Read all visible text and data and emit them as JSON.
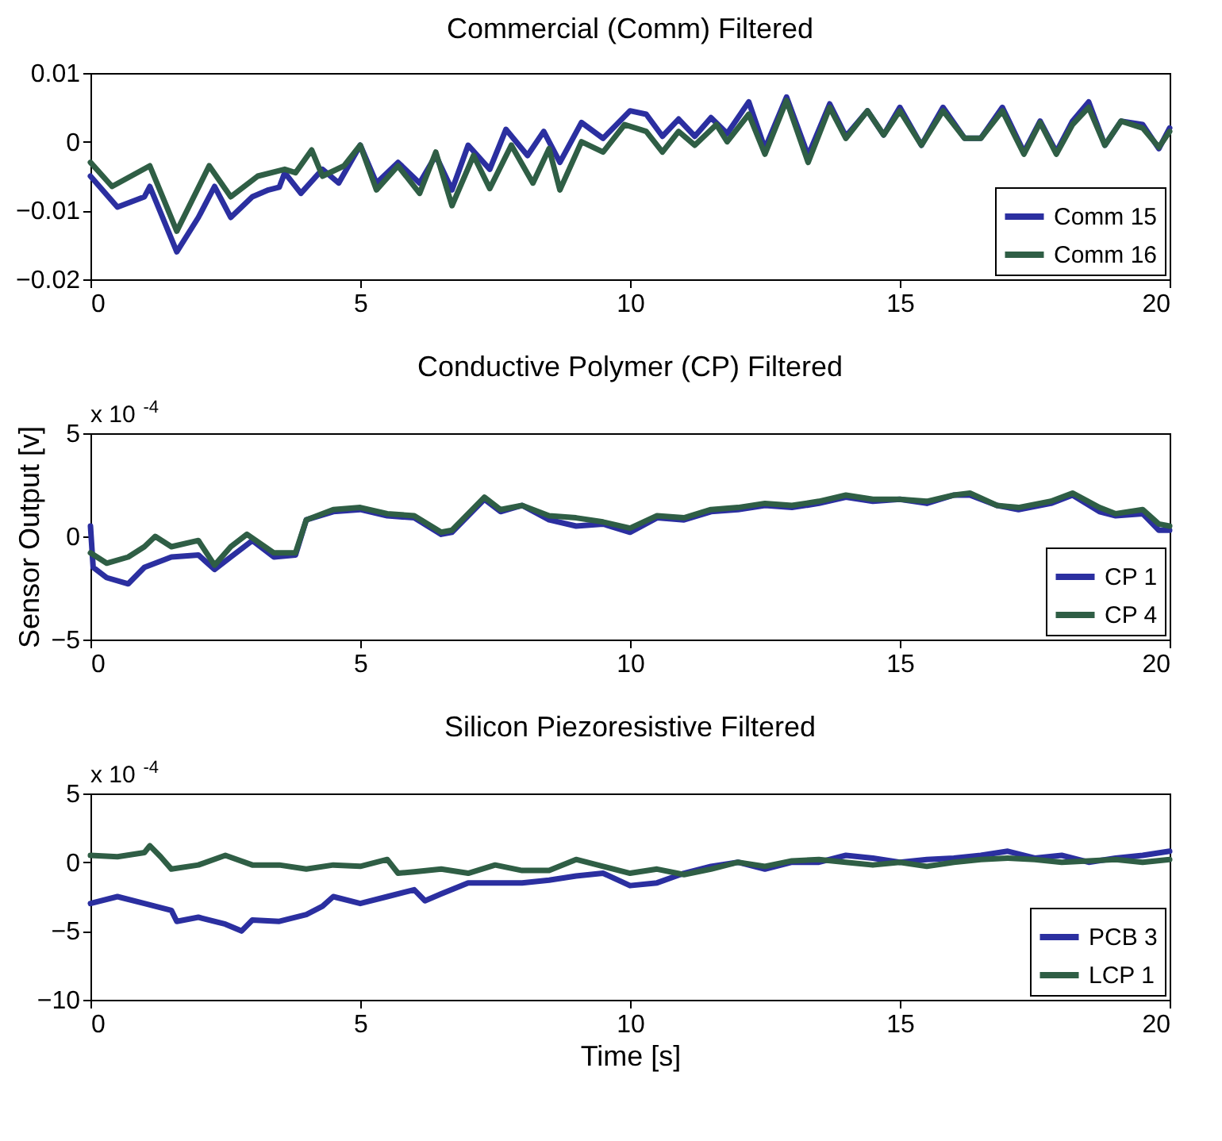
{
  "chart_data": [
    {
      "type": "line",
      "title": "Commercial (Comm) Filtered",
      "xlim": [
        0,
        20
      ],
      "xticks": [
        0,
        5,
        10,
        15,
        20
      ],
      "ylim": [
        -0.02,
        0.01
      ],
      "yticks": [
        -0.02,
        -0.01,
        0,
        0.01
      ],
      "grid": false,
      "legend": "bottom right",
      "line_style": "solid",
      "marker": "none",
      "series": [
        {
          "name": "Comm 15",
          "color": "#2b2fa0",
          "x": [
            0,
            0.5,
            1.0,
            1.1,
            1.6,
            2.0,
            2.3,
            2.6,
            3.0,
            3.3,
            3.5,
            3.6,
            3.9,
            4.3,
            4.6,
            5.0,
            5.3,
            5.7,
            6.1,
            6.4,
            6.7,
            7.0,
            7.4,
            7.7,
            8.1,
            8.4,
            8.7,
            9.1,
            9.5,
            10.0,
            10.3,
            10.6,
            10.9,
            11.2,
            11.5,
            11.8,
            12.2,
            12.5,
            12.9,
            13.3,
            13.7,
            14.0,
            14.4,
            14.7,
            15.0,
            15.4,
            15.8,
            16.2,
            16.5,
            16.9,
            17.3,
            17.6,
            17.9,
            18.2,
            18.5,
            18.8,
            19.1,
            19.5,
            19.8,
            20
          ],
          "values": [
            -0.005,
            -0.0095,
            -0.008,
            -0.0065,
            -0.016,
            -0.011,
            -0.0065,
            -0.011,
            -0.008,
            -0.007,
            -0.0066,
            -0.0045,
            -0.0075,
            -0.004,
            -0.006,
            -0.0005,
            -0.006,
            -0.003,
            -0.006,
            -0.002,
            -0.007,
            -0.0005,
            -0.004,
            0.0018,
            -0.002,
            0.0015,
            -0.003,
            0.0028,
            0.0005,
            0.0045,
            0.004,
            0.0008,
            0.0033,
            0.0008,
            0.0035,
            0.0012,
            0.0058,
            -0.001,
            0.0065,
            -0.002,
            0.0055,
            0.0008,
            0.0045,
            0.001,
            0.005,
            -0.0005,
            0.005,
            0.0005,
            0.0005,
            0.005,
            -0.0015,
            0.003,
            -0.0015,
            0.003,
            0.0058,
            -0.0005,
            0.003,
            0.0025,
            -0.001,
            0.002
          ]
        },
        {
          "name": "Comm 16",
          "color": "#2f5e45",
          "x": [
            0,
            0.4,
            1.1,
            1.6,
            2.2,
            2.6,
            3.1,
            3.6,
            3.8,
            4.1,
            4.3,
            4.7,
            5.0,
            5.3,
            5.7,
            6.1,
            6.4,
            6.7,
            7.1,
            7.4,
            7.8,
            8.2,
            8.5,
            8.7,
            9.1,
            9.5,
            9.9,
            10.3,
            10.6,
            10.9,
            11.2,
            11.6,
            11.8,
            12.2,
            12.5,
            12.9,
            13.3,
            13.7,
            14.0,
            14.4,
            14.7,
            15.0,
            15.4,
            15.8,
            16.2,
            16.5,
            16.9,
            17.3,
            17.6,
            17.9,
            18.2,
            18.5,
            18.8,
            19.1,
            19.5,
            19.8,
            20
          ],
          "values": [
            -0.003,
            -0.0065,
            -0.0035,
            -0.013,
            -0.0035,
            -0.008,
            -0.005,
            -0.004,
            -0.0045,
            -0.0012,
            -0.005,
            -0.0035,
            -0.0005,
            -0.007,
            -0.0035,
            -0.0075,
            -0.0015,
            -0.0093,
            -0.002,
            -0.0068,
            -0.0005,
            -0.006,
            -0.001,
            -0.007,
            0.0,
            -0.0015,
            0.0025,
            0.0015,
            -0.0015,
            0.0015,
            -0.0005,
            0.0025,
            0.0,
            0.004,
            -0.0018,
            0.006,
            -0.003,
            0.005,
            0.0005,
            0.0045,
            0.001,
            0.0045,
            -0.0005,
            0.0045,
            0.0005,
            0.0005,
            0.0045,
            -0.0018,
            0.0028,
            -0.0018,
            0.0025,
            0.005,
            -0.0005,
            0.003,
            0.002,
            -0.0008,
            0.0015
          ]
        }
      ]
    },
    {
      "type": "line",
      "title": "Conductive Polymer (CP) Filtered",
      "ylabel": "Sensor Output [v]",
      "annotations": [
        "x 10$^{-4}$"
      ],
      "xlim": [
        0,
        20
      ],
      "xticks": [
        0,
        5,
        10,
        15,
        20
      ],
      "ylim": [
        -5,
        5
      ],
      "yticks": [
        -5,
        0,
        5
      ],
      "grid": false,
      "legend": "bottom right",
      "line_style": "solid",
      "marker": "none",
      "series": [
        {
          "name": "CP 1",
          "color": "#2b2fa0",
          "x": [
            0,
            0.05,
            0.3,
            0.7,
            1.0,
            1.5,
            2.0,
            2.3,
            2.6,
            3.0,
            3.4,
            3.8,
            4.0,
            4.5,
            5.0,
            5.5,
            6.0,
            6.5,
            6.7,
            7.3,
            7.6,
            8.0,
            8.5,
            9.0,
            9.5,
            10.0,
            10.5,
            11.0,
            11.5,
            12,
            12.5,
            13,
            13.5,
            14,
            14.5,
            15,
            15.5,
            16,
            16.3,
            16.8,
            17.2,
            17.8,
            18.2,
            18.7,
            19.0,
            19.5,
            19.8,
            20
          ],
          "values": [
            0.5,
            -1.5,
            -2.0,
            -2.3,
            -1.5,
            -1.0,
            -0.9,
            -1.6,
            -1.0,
            -0.2,
            -1.0,
            -0.9,
            0.8,
            1.2,
            1.3,
            1.0,
            0.9,
            0.1,
            0.2,
            1.8,
            1.2,
            1.5,
            0.8,
            0.5,
            0.6,
            0.2,
            0.9,
            0.8,
            1.2,
            1.3,
            1.5,
            1.4,
            1.6,
            1.9,
            1.7,
            1.8,
            1.6,
            2.0,
            2.0,
            1.5,
            1.3,
            1.6,
            2.0,
            1.2,
            1.0,
            1.1,
            0.3,
            0.3
          ]
        },
        {
          "name": "CP 4",
          "color": "#2f5e45",
          "x": [
            0,
            0.3,
            0.7,
            1.0,
            1.2,
            1.5,
            2.0,
            2.3,
            2.6,
            2.9,
            3.4,
            3.8,
            4.0,
            4.5,
            5.0,
            5.5,
            6.0,
            6.5,
            6.7,
            7.3,
            7.6,
            8.0,
            8.5,
            9.0,
            9.5,
            10.0,
            10.5,
            11.0,
            11.5,
            12,
            12.5,
            13,
            13.5,
            14,
            14.5,
            15,
            15.5,
            16,
            16.3,
            16.8,
            17.2,
            17.8,
            18.2,
            18.7,
            19.0,
            19.5,
            19.8,
            20
          ],
          "values": [
            -0.8,
            -1.3,
            -1.0,
            -0.5,
            0.0,
            -0.5,
            -0.2,
            -1.4,
            -0.5,
            0.1,
            -0.8,
            -0.8,
            0.8,
            1.3,
            1.4,
            1.1,
            1.0,
            0.2,
            0.3,
            1.9,
            1.3,
            1.5,
            1.0,
            0.9,
            0.7,
            0.4,
            1.0,
            0.9,
            1.3,
            1.4,
            1.6,
            1.5,
            1.7,
            2.0,
            1.8,
            1.8,
            1.7,
            2.0,
            2.1,
            1.5,
            1.4,
            1.7,
            2.1,
            1.4,
            1.1,
            1.3,
            0.6,
            0.5
          ]
        }
      ]
    },
    {
      "type": "line",
      "title": "Silicon Piezoresistive Filtered",
      "xlabel": "Time [s]",
      "annotations": [
        "x 10$^{-4}$"
      ],
      "xlim": [
        0,
        20
      ],
      "xticks": [
        0,
        5,
        10,
        15,
        20
      ],
      "ylim": [
        -10,
        5
      ],
      "yticks": [
        -10,
        -5,
        0,
        5
      ],
      "grid": false,
      "legend": "bottom right",
      "line_style": "solid",
      "marker": "none",
      "series": [
        {
          "name": "PCB 3",
          "color": "#2b2fa0",
          "x": [
            0,
            0.5,
            1.0,
            1.5,
            1.6,
            2.0,
            2.5,
            2.8,
            3.0,
            3.5,
            4.0,
            4.3,
            4.5,
            5.0,
            5.5,
            6.0,
            6.2,
            6.5,
            7.0,
            7.5,
            8.0,
            8.5,
            9.0,
            9.5,
            10.0,
            10.5,
            11.0,
            11.5,
            12,
            12.5,
            13,
            13.5,
            14,
            14.5,
            15,
            15.5,
            16,
            16.5,
            17.0,
            17.5,
            18,
            18.5,
            19,
            19.5,
            20
          ],
          "values": [
            -3.0,
            -2.5,
            -3.0,
            -3.5,
            -4.3,
            -4.0,
            -4.5,
            -5.0,
            -4.2,
            -4.3,
            -3.8,
            -3.2,
            -2.5,
            -3.0,
            -2.5,
            -2.0,
            -2.8,
            -2.3,
            -1.5,
            -1.5,
            -1.5,
            -1.3,
            -1.0,
            -0.8,
            -1.7,
            -1.5,
            -0.8,
            -0.3,
            0.0,
            -0.5,
            0.0,
            0.0,
            0.5,
            0.3,
            0.0,
            0.2,
            0.3,
            0.5,
            0.8,
            0.3,
            0.5,
            0.0,
            0.3,
            0.5,
            0.8
          ]
        },
        {
          "name": "LCP 1",
          "color": "#2f5e45",
          "x": [
            0,
            0.5,
            1.0,
            1.1,
            1.3,
            1.5,
            2.0,
            2.5,
            3.0,
            3.5,
            4.0,
            4.5,
            5.0,
            5.5,
            5.7,
            6.0,
            6.5,
            7.0,
            7.5,
            8.0,
            8.5,
            9.0,
            9.5,
            10.0,
            10.5,
            11.0,
            11.5,
            12,
            12.5,
            13,
            13.5,
            14,
            14.5,
            15,
            15.5,
            16,
            16.5,
            17,
            17.5,
            18,
            18.5,
            19,
            19.5,
            20
          ],
          "values": [
            0.5,
            0.4,
            0.7,
            1.2,
            0.4,
            -0.5,
            -0.2,
            0.5,
            -0.2,
            -0.2,
            -0.5,
            -0.2,
            -0.3,
            0.2,
            -0.8,
            -0.7,
            -0.5,
            -0.8,
            -0.2,
            -0.6,
            -0.6,
            0.2,
            -0.3,
            -0.8,
            -0.5,
            -0.9,
            -0.5,
            0.0,
            -0.3,
            0.1,
            0.2,
            0.0,
            -0.2,
            0.0,
            -0.3,
            0.0,
            0.2,
            0.3,
            0.2,
            0.0,
            0.1,
            0.2,
            0.0,
            0.2
          ]
        }
      ]
    }
  ]
}
